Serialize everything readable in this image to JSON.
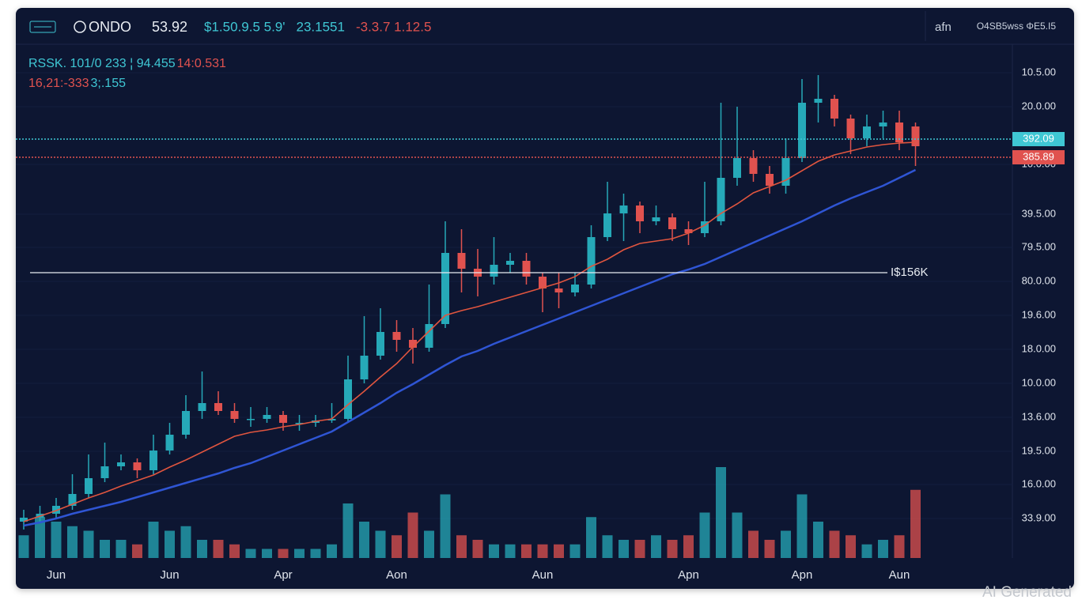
{
  "header": {
    "logo": "ONDO",
    "price": "53.92",
    "items": [
      {
        "text": "$1.50.9.5 5.9'",
        "color": "#3fc7d4"
      },
      {
        "text": "23.1551",
        "color": "#3fc7d4"
      },
      {
        "text": "-3.3.7 1.12.5",
        "color": "#e0524f"
      }
    ],
    "right_icon": "afn",
    "right_text": "O4SB5wss ΦE5.I5"
  },
  "legend_lines": [
    [
      {
        "text": "RSSK. 101/0 233 ¦ 94.455",
        "color": "#3fc7d4"
      },
      {
        "text": "14:0.531",
        "color": "#e0524f"
      }
    ],
    [
      {
        "text": "16,21:-333",
        "color": "#e0524f"
      },
      {
        "text": "3;.155",
        "color": "#3fc7d4"
      }
    ]
  ],
  "watermark": "AI Generated",
  "chart_data": {
    "type": "candlestick",
    "categories": [
      null,
      null,
      "Jun",
      null,
      null,
      null,
      null,
      null,
      null,
      "Jun",
      null,
      null,
      null,
      null,
      null,
      null,
      "Apr",
      null,
      null,
      null,
      null,
      null,
      null,
      "Aon",
      null,
      null,
      null,
      null,
      null,
      null,
      null,
      null,
      "Aun",
      null,
      null,
      null,
      null,
      null,
      null,
      null,
      null,
      "Apn",
      null,
      null,
      null,
      null,
      null,
      null,
      "Apn",
      null,
      null,
      null,
      null,
      null,
      "Aun",
      null
    ],
    "open": [
      4.0,
      4.5,
      5.0,
      6.0,
      7.5,
      9.5,
      11.0,
      11.5,
      10.5,
      13.0,
      15.0,
      18.0,
      19.0,
      18.0,
      17.0,
      17.0,
      17.5,
      16.5,
      16.5,
      16.8,
      17.0,
      22.0,
      25.0,
      28.0,
      27.0,
      26.0,
      29.0,
      38.0,
      36.0,
      35.0,
      36.5,
      37.0,
      35.0,
      33.5,
      33.0,
      34.0,
      40.0,
      43.0,
      44.0,
      42.0,
      42.5,
      41.0,
      40.5,
      42.0,
      47.5,
      50.0,
      48.0,
      46.5,
      50.0,
      57.0,
      57.5,
      55.0,
      52.5,
      54.0,
      54.5,
      54.0
    ],
    "high": [
      5.5,
      6.0,
      7.0,
      10.0,
      12.5,
      14.0,
      12.5,
      12.0,
      15.0,
      16.5,
      20.0,
      23.0,
      20.5,
      19.0,
      18.5,
      18.5,
      18.0,
      17.5,
      17.5,
      19.0,
      25.0,
      30.0,
      31.0,
      29.5,
      28.5,
      34.0,
      42.0,
      41.0,
      38.5,
      40.0,
      38.0,
      38.0,
      35.5,
      35.5,
      35.5,
      41.5,
      47.0,
      45.5,
      44.5,
      44.0,
      43.0,
      42.0,
      47.0,
      57.0,
      56.5,
      51.0,
      49.0,
      52.5,
      60.0,
      60.5,
      58.0,
      55.5,
      55.5,
      56.0,
      56.0,
      54.5
    ],
    "low": [
      3.0,
      3.8,
      4.5,
      5.5,
      7.0,
      9.0,
      10.5,
      9.5,
      10.0,
      12.5,
      14.5,
      17.0,
      17.5,
      16.5,
      16.0,
      16.5,
      15.5,
      15.5,
      16.0,
      16.5,
      16.5,
      21.5,
      24.5,
      25.5,
      24.0,
      25.5,
      28.5,
      33.0,
      32.5,
      34.0,
      35.5,
      34.0,
      30.5,
      31.0,
      32.5,
      33.5,
      39.5,
      39.5,
      40.5,
      41.5,
      39.5,
      39.0,
      40.0,
      41.5,
      46.5,
      47.0,
      45.5,
      45.5,
      49.5,
      54.5,
      54.0,
      50.5,
      51.5,
      52.5,
      51.0,
      49.0
    ],
    "close": [
      4.5,
      5.0,
      6.0,
      7.5,
      9.5,
      11.0,
      11.5,
      10.5,
      13.0,
      15.0,
      18.0,
      19.0,
      18.0,
      17.0,
      17.0,
      17.5,
      16.5,
      16.5,
      16.8,
      17.0,
      22.0,
      25.0,
      28.0,
      27.0,
      26.0,
      29.0,
      38.0,
      36.0,
      35.0,
      36.5,
      37.0,
      35.0,
      33.5,
      33.0,
      34.0,
      40.0,
      43.0,
      44.0,
      42.0,
      42.5,
      41.0,
      40.5,
      42.0,
      47.5,
      50.0,
      48.0,
      46.5,
      50.0,
      57.0,
      57.5,
      55.0,
      52.5,
      54.0,
      54.5,
      52.0,
      51.5
    ],
    "volume": [
      25,
      45,
      40,
      35,
      30,
      20,
      20,
      15,
      40,
      30,
      35,
      20,
      20,
      15,
      10,
      10,
      10,
      10,
      10,
      15,
      60,
      40,
      30,
      25,
      50,
      30,
      70,
      25,
      20,
      15,
      15,
      15,
      15,
      15,
      15,
      45,
      25,
      20,
      20,
      25,
      20,
      25,
      50,
      100,
      50,
      30,
      20,
      30,
      70,
      40,
      30,
      25,
      15,
      20,
      25,
      75
    ],
    "up_color": "#26a9b8",
    "down_color": "#e0524f",
    "series": [
      {
        "color": "#e0553f",
        "values": [
          4.0,
          4.7,
          5.4,
          6.2,
          7.0,
          7.7,
          8.5,
          9.2,
          9.9,
          10.9,
          11.8,
          12.8,
          13.8,
          14.8,
          15.3,
          15.6,
          16.0,
          16.3,
          16.7,
          17.0,
          18.8,
          20.5,
          22.3,
          24.0,
          26.1,
          28.1,
          30.1,
          30.7,
          31.2,
          31.8,
          32.4,
          33.0,
          33.6,
          34.2,
          35.0,
          36.3,
          37.2,
          38.4,
          39.2,
          39.5,
          39.8,
          40.5,
          41.5,
          43.0,
          44.2,
          45.6,
          46.4,
          47.2,
          48.4,
          49.6,
          50.4,
          50.9,
          51.4,
          51.7,
          51.9,
          52.0
        ]
      },
      {
        "color": "#2f55d4",
        "values": [
          3.5,
          3.9,
          4.4,
          5.0,
          5.5,
          6.0,
          6.5,
          7.1,
          7.7,
          8.3,
          8.9,
          9.5,
          10.1,
          10.8,
          11.4,
          12.2,
          13.0,
          13.8,
          14.6,
          15.4,
          16.6,
          17.8,
          19.0,
          20.3,
          21.4,
          22.6,
          23.8,
          24.9,
          25.6,
          26.5,
          27.3,
          28.1,
          28.9,
          29.7,
          30.5,
          31.3,
          32.1,
          32.9,
          33.7,
          34.5,
          35.3,
          35.9,
          36.6,
          37.5,
          38.4,
          39.3,
          40.2,
          41.1,
          42.0,
          43.0,
          44.0,
          44.9,
          45.7,
          46.5,
          47.5,
          48.5
        ]
      }
    ],
    "price_lines": [
      {
        "value": 52.4,
        "label": "392.09",
        "color": "#3fc7d4"
      },
      {
        "value": 50.1,
        "label": "385.89",
        "color": "#e0524f"
      },
      {
        "value": 35.5,
        "label": "I$156K",
        "color": "#e8ecf2"
      }
    ],
    "ylim": [
      0,
      64
    ],
    "yticks": [
      {
        "value": 60.8,
        "label": "10.5.00"
      },
      {
        "value": 56.5,
        "label": "20.0.00"
      },
      {
        "value": 49.2,
        "label": "10.0.00"
      },
      {
        "value": 42.9,
        "label": "39.5.00"
      },
      {
        "value": 38.7,
        "label": "79.5.00"
      },
      {
        "value": 34.4,
        "label": "80.0.00"
      },
      {
        "value": 30.1,
        "label": "19.6.00"
      },
      {
        "value": 25.8,
        "label": "18.0.00"
      },
      {
        "value": 21.5,
        "label": "10.0.00"
      },
      {
        "value": 17.2,
        "label": "13.6.00"
      },
      {
        "value": 12.9,
        "label": "19.5.00"
      },
      {
        "value": 8.7,
        "label": "16.0.00"
      },
      {
        "value": 4.4,
        "label": "33.9.00"
      }
    ],
    "grid": true
  }
}
